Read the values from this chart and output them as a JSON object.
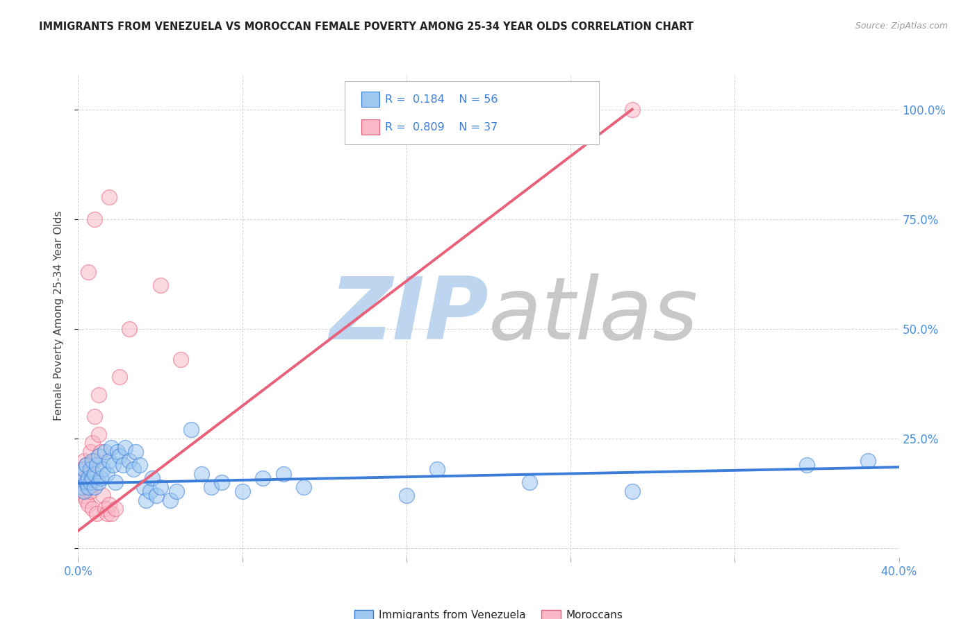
{
  "title": "IMMIGRANTS FROM VENEZUELA VS MOROCCAN FEMALE POVERTY AMONG 25-34 YEAR OLDS CORRELATION CHART",
  "source": "Source: ZipAtlas.com",
  "ylabel": "Female Poverty Among 25-34 Year Olds",
  "xlim": [
    0.0,
    0.4
  ],
  "ylim": [
    -0.02,
    1.08
  ],
  "yticks_right": [
    0.0,
    0.25,
    0.5,
    0.75,
    1.0
  ],
  "ytickslabels_right": [
    "",
    "25.0%",
    "50.0%",
    "75.0%",
    "100.0%"
  ],
  "blue_scatter": [
    [
      0.001,
      0.15
    ],
    [
      0.002,
      0.14
    ],
    [
      0.002,
      0.17
    ],
    [
      0.003,
      0.13
    ],
    [
      0.003,
      0.18
    ],
    [
      0.004,
      0.15
    ],
    [
      0.004,
      0.19
    ],
    [
      0.005,
      0.14
    ],
    [
      0.005,
      0.16
    ],
    [
      0.006,
      0.15
    ],
    [
      0.006,
      0.18
    ],
    [
      0.007,
      0.16
    ],
    [
      0.007,
      0.2
    ],
    [
      0.008,
      0.14
    ],
    [
      0.008,
      0.17
    ],
    [
      0.009,
      0.19
    ],
    [
      0.01,
      0.15
    ],
    [
      0.01,
      0.21
    ],
    [
      0.011,
      0.16
    ],
    [
      0.012,
      0.18
    ],
    [
      0.013,
      0.22
    ],
    [
      0.014,
      0.17
    ],
    [
      0.015,
      0.2
    ],
    [
      0.016,
      0.23
    ],
    [
      0.017,
      0.19
    ],
    [
      0.018,
      0.15
    ],
    [
      0.019,
      0.22
    ],
    [
      0.02,
      0.21
    ],
    [
      0.022,
      0.19
    ],
    [
      0.023,
      0.23
    ],
    [
      0.025,
      0.2
    ],
    [
      0.027,
      0.18
    ],
    [
      0.028,
      0.22
    ],
    [
      0.03,
      0.19
    ],
    [
      0.032,
      0.14
    ],
    [
      0.033,
      0.11
    ],
    [
      0.035,
      0.13
    ],
    [
      0.036,
      0.16
    ],
    [
      0.038,
      0.12
    ],
    [
      0.04,
      0.14
    ],
    [
      0.045,
      0.11
    ],
    [
      0.048,
      0.13
    ],
    [
      0.055,
      0.27
    ],
    [
      0.06,
      0.17
    ],
    [
      0.065,
      0.14
    ],
    [
      0.07,
      0.15
    ],
    [
      0.08,
      0.13
    ],
    [
      0.09,
      0.16
    ],
    [
      0.1,
      0.17
    ],
    [
      0.11,
      0.14
    ],
    [
      0.16,
      0.12
    ],
    [
      0.175,
      0.18
    ],
    [
      0.22,
      0.15
    ],
    [
      0.27,
      0.13
    ],
    [
      0.355,
      0.19
    ],
    [
      0.385,
      0.2
    ]
  ],
  "pink_scatter": [
    [
      0.001,
      0.15
    ],
    [
      0.002,
      0.14
    ],
    [
      0.002,
      0.13
    ],
    [
      0.002,
      0.18
    ],
    [
      0.003,
      0.16
    ],
    [
      0.003,
      0.12
    ],
    [
      0.003,
      0.2
    ],
    [
      0.004,
      0.15
    ],
    [
      0.004,
      0.11
    ],
    [
      0.004,
      0.19
    ],
    [
      0.005,
      0.14
    ],
    [
      0.005,
      0.1
    ],
    [
      0.005,
      0.17
    ],
    [
      0.006,
      0.13
    ],
    [
      0.006,
      0.22
    ],
    [
      0.007,
      0.09
    ],
    [
      0.007,
      0.24
    ],
    [
      0.008,
      0.2
    ],
    [
      0.008,
      0.3
    ],
    [
      0.009,
      0.08
    ],
    [
      0.01,
      0.26
    ],
    [
      0.01,
      0.35
    ],
    [
      0.011,
      0.22
    ],
    [
      0.012,
      0.12
    ],
    [
      0.013,
      0.09
    ],
    [
      0.014,
      0.08
    ],
    [
      0.015,
      0.1
    ],
    [
      0.016,
      0.08
    ],
    [
      0.018,
      0.09
    ],
    [
      0.02,
      0.39
    ],
    [
      0.025,
      0.5
    ],
    [
      0.04,
      0.6
    ],
    [
      0.05,
      0.43
    ],
    [
      0.005,
      0.63
    ],
    [
      0.008,
      0.75
    ],
    [
      0.015,
      0.8
    ],
    [
      0.27,
      1.0
    ]
  ],
  "blue_line": {
    "x": [
      0.0,
      0.4
    ],
    "y": [
      0.148,
      0.185
    ]
  },
  "pink_line": {
    "x": [
      0.0,
      0.27
    ],
    "y": [
      0.04,
      1.0
    ]
  },
  "R_blue": "0.184",
  "N_blue": "56",
  "R_pink": "0.809",
  "N_pink": "37",
  "blue_color": "#9EC8F0",
  "pink_color": "#F8B8C8",
  "blue_line_color": "#3B7DD8",
  "pink_line_color": "#E8607A",
  "watermark_color_zip": "#BDD5EF",
  "watermark_color_atlas": "#C8C8C8",
  "title_color": "#222222",
  "source_color": "#999999",
  "axis_label_color": "#444444",
  "tick_color_right": "#4A90D9",
  "tick_color_x": "#4A90D9",
  "legend_label1": "Immigrants from Venezuela",
  "legend_label2": "Moroccans",
  "background_color": "#FFFFFF",
  "grid_color": "#CCCCCC"
}
